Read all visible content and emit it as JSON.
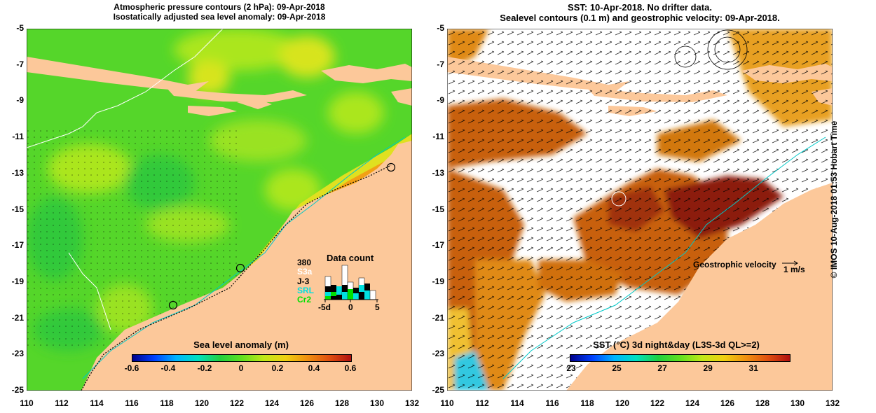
{
  "left_panel": {
    "title_line1": "Atmospheric pressure contours (2 hPa): 09-Apr-2018",
    "title_line2": "Isostatically adjusted sea level anomaly: 09-Apr-2018",
    "colorbar": {
      "label": "Sea level anomaly (m)",
      "ticks": [
        "-0.6",
        "-0.4",
        "-0.2",
        "0",
        "0.2",
        "0.4",
        "0.6"
      ]
    },
    "data_count": {
      "title": "Data count",
      "max": "380",
      "missions": [
        {
          "name": "S3a",
          "color": "#ffffff"
        },
        {
          "name": "J-3",
          "color": "#000000"
        },
        {
          "name": "SRL",
          "color": "#00e0e0"
        },
        {
          "name": "Cr2",
          "color": "#00e000"
        }
      ],
      "axis_ticks": [
        "-5d",
        "0",
        "5"
      ]
    }
  },
  "right_panel": {
    "title_line1": "SST: 10-Apr-2018. No drifter data.",
    "title_line2": "Sealevel contours (0.1 m) and geostrophic velocity: 09-Apr-2018.",
    "velocity_label": "Geostrophic velocity",
    "velocity_scale": "1 m/s",
    "colorbar": {
      "label": "SST (°C) 3d night&day (L3S-3d QL>=2)",
      "ticks": [
        "23",
        "25",
        "27",
        "29",
        "31"
      ]
    }
  },
  "axes": {
    "y_ticks": [
      "-5",
      "-7",
      "-9",
      "-11",
      "-13",
      "-15",
      "-17",
      "-19",
      "-21",
      "-23",
      "-25"
    ],
    "x_ticks": [
      "110",
      "112",
      "114",
      "116",
      "118",
      "120",
      "122",
      "124",
      "126",
      "128",
      "130",
      "132"
    ]
  },
  "credit": "© IMOS 10-Aug-2018 01:53 Hobart Time",
  "colors": {
    "land": "#fcc89a",
    "sea_green": "#55d62a",
    "sst_orange": "#e07a14",
    "cloud": "#ffffff"
  }
}
